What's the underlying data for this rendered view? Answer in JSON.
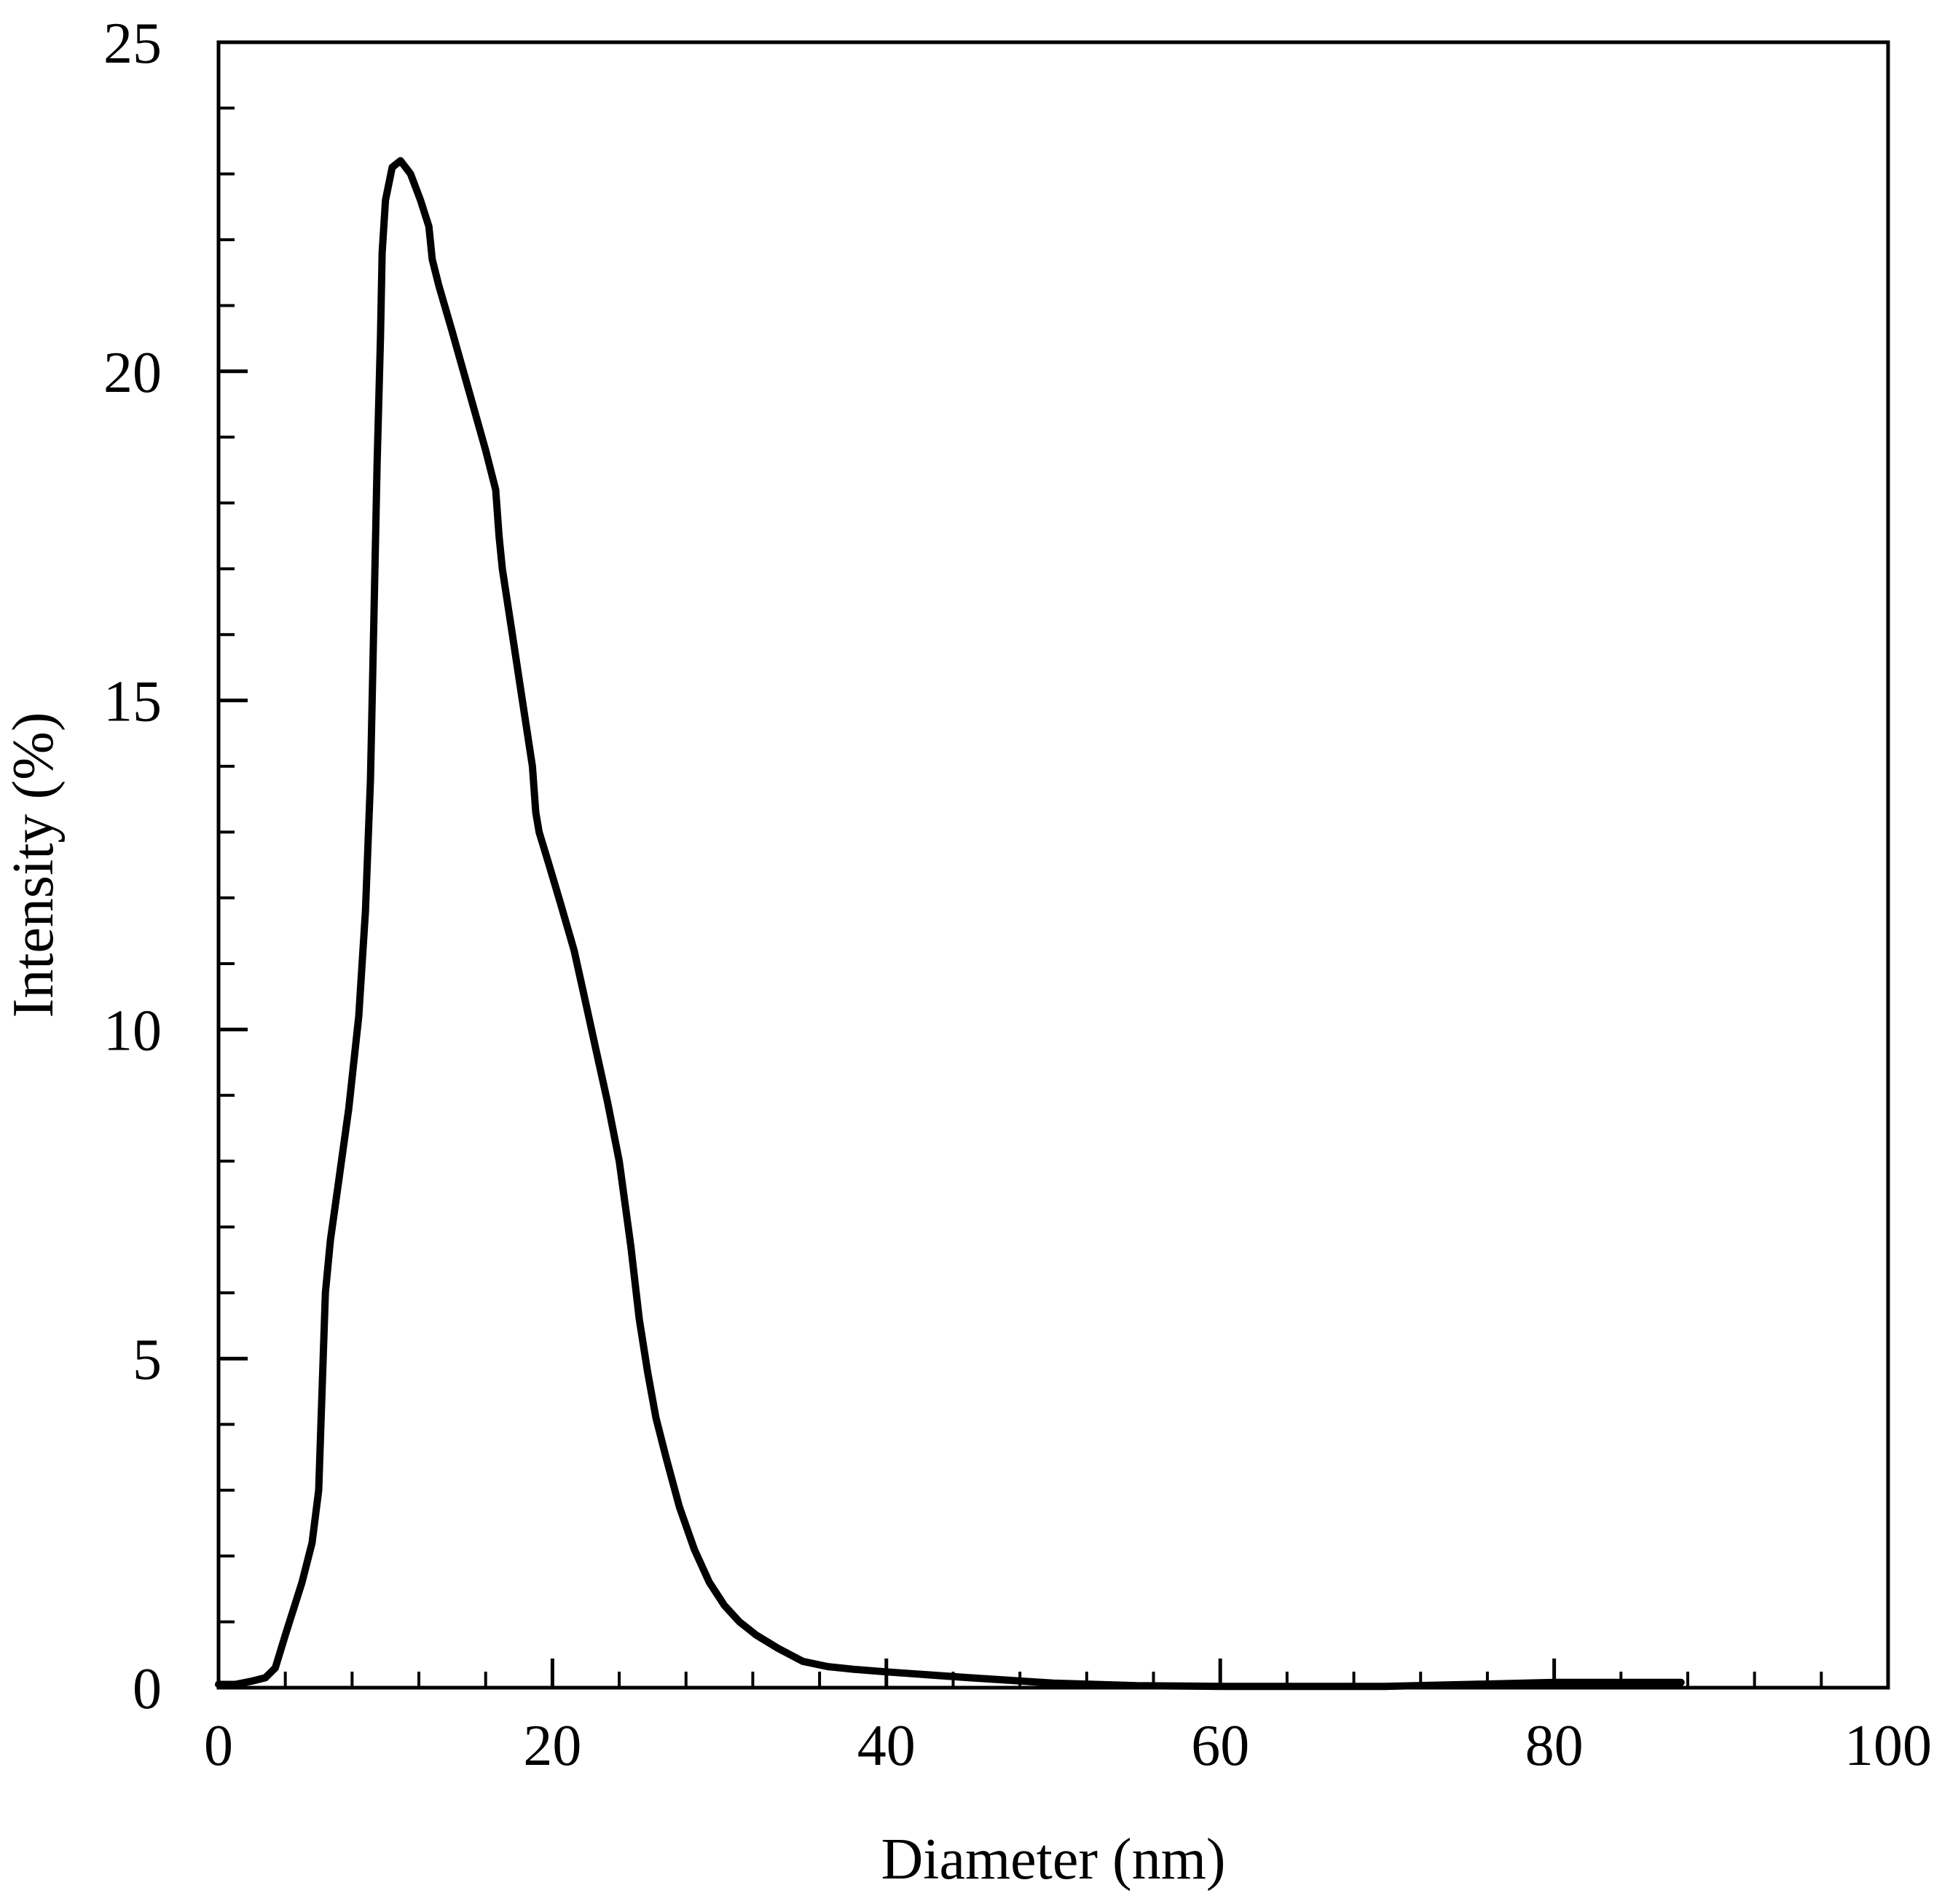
{
  "chart_data": {
    "type": "line",
    "xlabel": "Diameter (nm)",
    "ylabel": "Intensity (%)",
    "xlim": [
      0,
      100
    ],
    "ylim": [
      0,
      25
    ],
    "xticks": [
      0,
      20,
      40,
      60,
      80,
      100
    ],
    "xtick_labels": [
      "0",
      "20",
      "40",
      "60",
      "80",
      "100"
    ],
    "yticks": [
      0,
      5,
      10,
      15,
      20,
      25
    ],
    "ytick_labels": [
      "0",
      "5",
      "10",
      "15",
      "20",
      "25"
    ],
    "x_minor_step": 4,
    "y_minor_step": 1,
    "grid": false,
    "line_color": "#000000",
    "series": [
      {
        "x": [
          0,
          1,
          2,
          2.8,
          3.4,
          4,
          5,
          5.6,
          6.0,
          6.2,
          6.4,
          6.7,
          7.2,
          7.8,
          8.4,
          8.8,
          9.1,
          9.3,
          9.5,
          9.7,
          9.8,
          10.0,
          10.4,
          10.9,
          11.5,
          12.1,
          12.6,
          12.8,
          13.2,
          14,
          15,
          16,
          16.6,
          16.8,
          17,
          17.6,
          18.2,
          18.8,
          19.0,
          19.2,
          19.8,
          20.5,
          21.3,
          22,
          22.6,
          23.3,
          24,
          24.7,
          25.2,
          25.7,
          26.2,
          26.8,
          27.6,
          28.5,
          29.4,
          30.3,
          31.2,
          32.2,
          33.5,
          35,
          36.5,
          38,
          40,
          45,
          50,
          55,
          60,
          65,
          70,
          75,
          80,
          85,
          87.6
        ],
        "y": [
          0.05,
          0.05,
          0.1,
          0.15,
          0.3,
          0.8,
          1.6,
          2.2,
          3.0,
          4.5,
          6.0,
          6.8,
          7.7,
          8.8,
          10.2,
          11.8,
          13.8,
          16.2,
          18.6,
          20.5,
          21.8,
          22.6,
          23.1,
          23.2,
          23.0,
          22.6,
          22.2,
          21.7,
          21.3,
          20.6,
          19.7,
          18.8,
          18.2,
          17.5,
          17.0,
          16.0,
          15.0,
          14.0,
          13.3,
          13.0,
          12.5,
          11.9,
          11.2,
          10.4,
          9.7,
          8.9,
          8.0,
          6.7,
          5.6,
          4.8,
          4.1,
          3.5,
          2.75,
          2.1,
          1.6,
          1.25,
          1.0,
          0.8,
          0.6,
          0.4,
          0.32,
          0.28,
          0.24,
          0.15,
          0.07,
          0.03,
          0.02,
          0.02,
          0.02,
          0.05,
          0.08,
          0.08,
          0.08
        ]
      }
    ]
  }
}
